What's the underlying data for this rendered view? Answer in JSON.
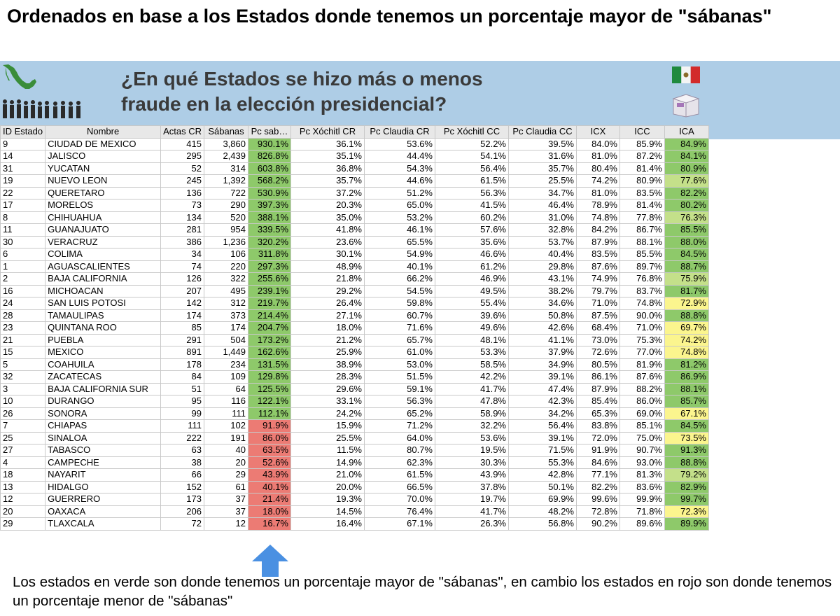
{
  "top_title": "Ordenados en base a los Estados donde tenemos un porcentaje mayor de \"sábanas\"",
  "banner": {
    "line1": "¿En qué Estados se hizo más o menos",
    "line2": "fraude en la elección presidencial?"
  },
  "colors": {
    "green": "#8ec96a",
    "red": "#ec7b74",
    "yellow": "#fbf58e",
    "light_green": "#c4e08a",
    "banner": "#aecde6"
  },
  "icons": [
    "mexico-map-icon",
    "voters-queue-icon",
    "mexico-flag-icon",
    "ballot-box-icon",
    "up-arrow-icon"
  ],
  "table": {
    "headers": [
      "ID Estado",
      "Nombre",
      "Actas CR",
      "Sábanas",
      "Pc sab…",
      "Pc Xóchitl CR",
      "Pc Claudia CR",
      "Pc Xóchitl CC",
      "Pc Claudia CC",
      "ICX",
      "ICC",
      "ICA"
    ],
    "rows": [
      [
        "9",
        "CIUDAD DE MEXICO",
        "415",
        "3,860",
        "930.1%",
        "36.1%",
        "53.6%",
        "52.2%",
        "39.5%",
        "84.0%",
        "85.9%",
        "84.9%"
      ],
      [
        "14",
        "JALISCO",
        "295",
        "2,439",
        "826.8%",
        "35.1%",
        "44.4%",
        "54.1%",
        "31.6%",
        "81.0%",
        "87.2%",
        "84.1%"
      ],
      [
        "31",
        "YUCATAN",
        "52",
        "314",
        "603.8%",
        "36.8%",
        "54.3%",
        "56.4%",
        "35.7%",
        "80.4%",
        "81.4%",
        "80.9%"
      ],
      [
        "19",
        "NUEVO LEON",
        "245",
        "1,392",
        "568.2%",
        "35.7%",
        "44.6%",
        "61.5%",
        "25.5%",
        "74.2%",
        "80.9%",
        "77.6%"
      ],
      [
        "22",
        "QUERETARO",
        "136",
        "722",
        "530.9%",
        "37.2%",
        "51.2%",
        "56.3%",
        "34.7%",
        "81.0%",
        "83.5%",
        "82.2%"
      ],
      [
        "17",
        "MORELOS",
        "73",
        "290",
        "397.3%",
        "20.3%",
        "65.0%",
        "41.5%",
        "46.4%",
        "78.9%",
        "81.4%",
        "80.2%"
      ],
      [
        "8",
        "CHIHUAHUA",
        "134",
        "520",
        "388.1%",
        "35.0%",
        "53.2%",
        "60.2%",
        "31.0%",
        "74.8%",
        "77.8%",
        "76.3%"
      ],
      [
        "11",
        "GUANAJUATO",
        "281",
        "954",
        "339.5%",
        "41.8%",
        "46.1%",
        "57.6%",
        "32.8%",
        "84.2%",
        "86.7%",
        "85.5%"
      ],
      [
        "30",
        "VERACRUZ",
        "386",
        "1,236",
        "320.2%",
        "23.6%",
        "65.5%",
        "35.6%",
        "53.7%",
        "87.9%",
        "88.1%",
        "88.0%"
      ],
      [
        "6",
        "COLIMA",
        "34",
        "106",
        "311.8%",
        "30.1%",
        "54.9%",
        "46.6%",
        "40.4%",
        "83.5%",
        "85.5%",
        "84.5%"
      ],
      [
        "1",
        "AGUASCALIENTES",
        "74",
        "220",
        "297.3%",
        "48.9%",
        "40.1%",
        "61.2%",
        "29.8%",
        "87.6%",
        "89.7%",
        "88.7%"
      ],
      [
        "2",
        "BAJA CALIFORNIA",
        "126",
        "322",
        "255.6%",
        "21.8%",
        "66.2%",
        "46.9%",
        "43.1%",
        "74.9%",
        "76.8%",
        "75.9%"
      ],
      [
        "16",
        "MICHOACAN",
        "207",
        "495",
        "239.1%",
        "29.2%",
        "54.5%",
        "49.5%",
        "38.2%",
        "79.7%",
        "83.7%",
        "81.7%"
      ],
      [
        "24",
        "SAN LUIS POTOSI",
        "142",
        "312",
        "219.7%",
        "26.4%",
        "59.8%",
        "55.4%",
        "34.6%",
        "71.0%",
        "74.8%",
        "72.9%"
      ],
      [
        "28",
        "TAMAULIPAS",
        "174",
        "373",
        "214.4%",
        "27.1%",
        "60.7%",
        "39.6%",
        "50.8%",
        "87.5%",
        "90.0%",
        "88.8%"
      ],
      [
        "23",
        "QUINTANA ROO",
        "85",
        "174",
        "204.7%",
        "18.0%",
        "71.6%",
        "49.6%",
        "42.6%",
        "68.4%",
        "71.0%",
        "69.7%"
      ],
      [
        "21",
        "PUEBLA",
        "291",
        "504",
        "173.2%",
        "21.2%",
        "65.7%",
        "48.1%",
        "41.1%",
        "73.0%",
        "75.3%",
        "74.2%"
      ],
      [
        "15",
        "MEXICO",
        "891",
        "1,449",
        "162.6%",
        "25.9%",
        "61.0%",
        "53.3%",
        "37.9%",
        "72.6%",
        "77.0%",
        "74.8%"
      ],
      [
        "5",
        "COAHUILA",
        "178",
        "234",
        "131.5%",
        "38.9%",
        "53.0%",
        "58.5%",
        "34.9%",
        "80.5%",
        "81.9%",
        "81.2%"
      ],
      [
        "32",
        "ZACATECAS",
        "84",
        "109",
        "129.8%",
        "28.3%",
        "51.5%",
        "42.2%",
        "39.1%",
        "86.1%",
        "87.6%",
        "86.9%"
      ],
      [
        "3",
        "BAJA CALIFORNIA SUR",
        "51",
        "64",
        "125.5%",
        "29.6%",
        "59.1%",
        "41.7%",
        "47.4%",
        "87.9%",
        "88.2%",
        "88.1%"
      ],
      [
        "10",
        "DURANGO",
        "95",
        "116",
        "122.1%",
        "33.1%",
        "56.3%",
        "47.8%",
        "42.3%",
        "85.4%",
        "86.0%",
        "85.7%"
      ],
      [
        "26",
        "SONORA",
        "99",
        "111",
        "112.1%",
        "24.2%",
        "65.2%",
        "58.9%",
        "34.2%",
        "65.3%",
        "69.0%",
        "67.1%"
      ],
      [
        "7",
        "CHIAPAS",
        "111",
        "102",
        "91.9%",
        "15.9%",
        "71.2%",
        "32.2%",
        "56.4%",
        "83.8%",
        "85.1%",
        "84.5%"
      ],
      [
        "25",
        "SINALOA",
        "222",
        "191",
        "86.0%",
        "25.5%",
        "64.0%",
        "53.6%",
        "39.1%",
        "72.0%",
        "75.0%",
        "73.5%"
      ],
      [
        "27",
        "TABASCO",
        "63",
        "40",
        "63.5%",
        "11.5%",
        "80.7%",
        "19.5%",
        "71.5%",
        "91.9%",
        "90.7%",
        "91.3%"
      ],
      [
        "4",
        "CAMPECHE",
        "38",
        "20",
        "52.6%",
        "14.9%",
        "62.3%",
        "30.3%",
        "55.3%",
        "84.6%",
        "93.0%",
        "88.8%"
      ],
      [
        "18",
        "NAYARIT",
        "66",
        "29",
        "43.9%",
        "21.0%",
        "61.5%",
        "43.9%",
        "42.8%",
        "77.1%",
        "81.3%",
        "79.2%"
      ],
      [
        "13",
        "HIDALGO",
        "152",
        "61",
        "40.1%",
        "20.0%",
        "66.5%",
        "37.8%",
        "50.1%",
        "82.2%",
        "83.6%",
        "82.9%"
      ],
      [
        "12",
        "GUERRERO",
        "173",
        "37",
        "21.4%",
        "19.3%",
        "70.0%",
        "19.7%",
        "69.9%",
        "99.6%",
        "99.9%",
        "99.7%"
      ],
      [
        "20",
        "OAXACA",
        "206",
        "37",
        "18.0%",
        "14.5%",
        "76.4%",
        "41.7%",
        "48.2%",
        "72.8%",
        "71.8%",
        "72.3%"
      ],
      [
        "29",
        "TLAXCALA",
        "72",
        "12",
        "16.7%",
        "16.4%",
        "67.1%",
        "26.3%",
        "56.8%",
        "90.2%",
        "89.6%",
        "89.9%"
      ]
    ],
    "sabanas_colors": [
      "green",
      "green",
      "green",
      "green",
      "green",
      "green",
      "green",
      "green",
      "green",
      "green",
      "green",
      "green",
      "green",
      "green",
      "green",
      "green",
      "green",
      "green",
      "green",
      "green",
      "green",
      "green",
      "green",
      "red",
      "red",
      "red",
      "red",
      "red",
      "red",
      "red",
      "red",
      "red"
    ],
    "ica_colors": [
      "green",
      "green",
      "green",
      "lgreen",
      "green",
      "green",
      "lgreen",
      "green",
      "green",
      "green",
      "green",
      "lgreen",
      "green",
      "yellow",
      "green",
      "yellow",
      "yellow",
      "yellow",
      "green",
      "green",
      "green",
      "green",
      "yellow",
      "green",
      "yellow",
      "green",
      "green",
      "lgreen",
      "green",
      "green",
      "yellow",
      "green"
    ]
  },
  "footnote": "Los estados en verde son donde tenemos un porcentaje mayor de \"sábanas\", en cambio los estados en rojo son donde tenemos un porcentaje menor de \"sábanas\""
}
